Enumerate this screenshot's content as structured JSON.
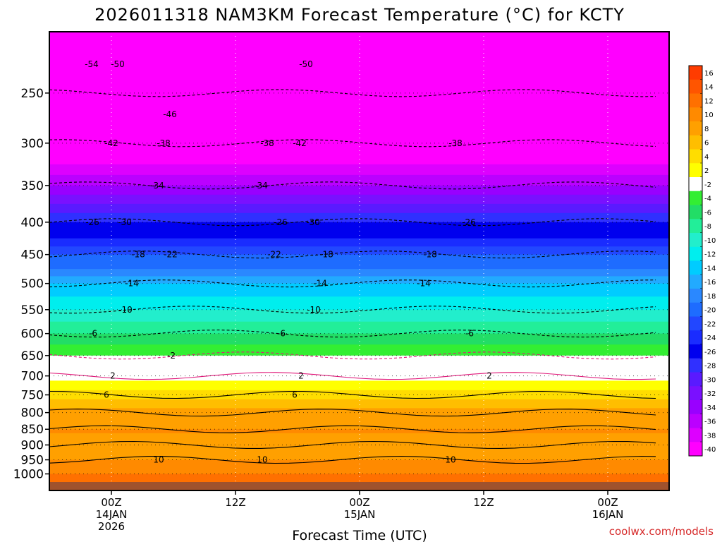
{
  "title": "2026011318 NAM3KM Forecast Temperature (°C) for KCTY",
  "credit": "coolwx.com/models",
  "chart_data": {
    "type": "heatmap",
    "title": "2026011318 NAM3KM Forecast Temperature (°C) for KCTY",
    "xlabel": "Forecast Time (UTC)",
    "ylabel": "",
    "y_scale": "log (pressure, hPa, inverted)",
    "y_ticks": [
      250,
      300,
      350,
      400,
      450,
      500,
      550,
      600,
      650,
      700,
      750,
      800,
      850,
      900,
      950,
      1000
    ],
    "ylim": [
      1030,
      200
    ],
    "xlim": [
      "2026-01-13 18Z",
      "2026-01-16 06Z"
    ],
    "x_ticks": [
      {
        "label": "00Z",
        "sub1": "14JAN",
        "sub2": "2026",
        "hour": 6
      },
      {
        "label": "12Z",
        "sub1": "",
        "sub2": "",
        "hour": 18
      },
      {
        "label": "00Z",
        "sub1": "15JAN",
        "sub2": "",
        "hour": 30
      },
      {
        "label": "12Z",
        "sub1": "",
        "sub2": "",
        "hour": 42
      },
      {
        "label": "00Z",
        "sub1": "16JAN",
        "sub2": "",
        "hour": 54
      }
    ],
    "grid": true,
    "legend": "right colorbar",
    "colorbar": {
      "levels": [
        "16",
        "14",
        "12",
        "10",
        "8",
        "6",
        "4",
        "2",
        "-2",
        "-4",
        "-6",
        "-8",
        "-10",
        "-12",
        "-14",
        "-16",
        "-18",
        "-20",
        "-22",
        "-24",
        "-26",
        "-28",
        "-30",
        "-32",
        "-34",
        "-36",
        "-38",
        "-40"
      ],
      "colors": [
        "#ff3c00",
        "#ff5500",
        "#ff7000",
        "#ff8a00",
        "#ffa000",
        "#ffbe00",
        "#ffdd00",
        "#ffff00",
        "#ffffff",
        "#33ee33",
        "#22dd66",
        "#22ee99",
        "#22eecc",
        "#00eeee",
        "#00ccff",
        "#22aaff",
        "#2a88ff",
        "#1e6cff",
        "#2247ff",
        "#1a2cff",
        "#0000ee",
        "#3030ff",
        "#5a1aff",
        "#7a10ff",
        "#9900ff",
        "#bb00ff",
        "#dd00ff",
        "#ff00ff"
      ]
    },
    "contour_labels": [
      "-54",
      "-50",
      "-50",
      "-46",
      "-42",
      "-42",
      "-38",
      "-38",
      "-38",
      "-34",
      "-34",
      "-30",
      "-30",
      "-26",
      "-26",
      "-26",
      "-22",
      "-22",
      "-18",
      "-18",
      "-18",
      "-14",
      "-14",
      "-14",
      "-10",
      "-10",
      "-6",
      "-6",
      "-6",
      "-2",
      "2",
      "2",
      "2",
      "6",
      "6",
      "10",
      "10",
      "10"
    ],
    "temperature_profile_by_pressure": [
      {
        "p": 1000,
        "t": 12
      },
      {
        "p": 950,
        "t": 10
      },
      {
        "p": 900,
        "t": 9
      },
      {
        "p": 850,
        "t": 10
      },
      {
        "p": 800,
        "t": 9
      },
      {
        "p": 750,
        "t": 5
      },
      {
        "p": 700,
        "t": 1
      },
      {
        "p": 650,
        "t": -2
      },
      {
        "p": 600,
        "t": -6
      },
      {
        "p": 550,
        "t": -10
      },
      {
        "p": 500,
        "t": -14
      },
      {
        "p": 450,
        "t": -20
      },
      {
        "p": 400,
        "t": -26
      },
      {
        "p": 350,
        "t": -34
      },
      {
        "p": 300,
        "t": -40
      },
      {
        "p": 250,
        "t": -50
      }
    ]
  }
}
